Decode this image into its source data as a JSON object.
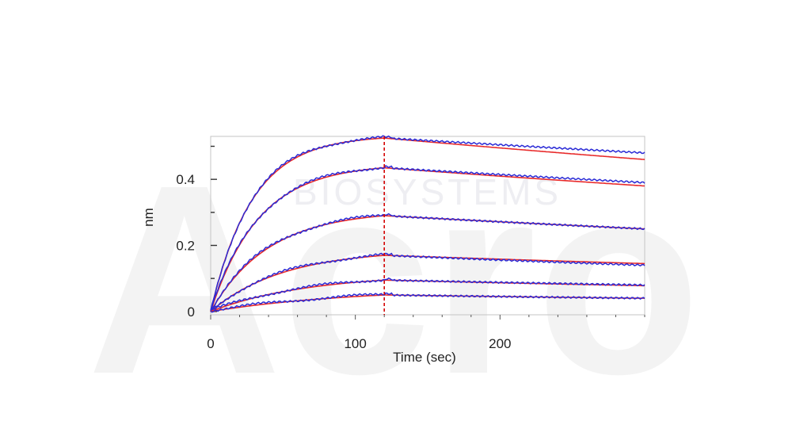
{
  "watermark": {
    "logo": "Acro",
    "text": "BIOSYSTEMS"
  },
  "chart_data": {
    "type": "line",
    "title": "",
    "xlabel": "Time (sec)",
    "ylabel": "nm",
    "xlim": [
      0,
      300
    ],
    "ylim": [
      -0.01,
      0.53
    ],
    "xticks": [
      0,
      100,
      200
    ],
    "yticks": [
      0,
      0.2,
      0.4
    ],
    "x_minor_step": 20,
    "y_minor_step": 0.1,
    "dissociation_start": 120,
    "colors": {
      "measured": "#2b2bd6",
      "fit": "#e82a2a",
      "marker": "#d40000"
    },
    "series": [
      {
        "name": "curve-1",
        "association_peak": 0.525,
        "end_measured": 0.48,
        "end_fit": 0.46
      },
      {
        "name": "curve-2",
        "association_peak": 0.435,
        "end_measured": 0.39,
        "end_fit": 0.38
      },
      {
        "name": "curve-3",
        "association_peak": 0.29,
        "end_measured": 0.25,
        "end_fit": 0.25
      },
      {
        "name": "curve-4",
        "association_peak": 0.17,
        "end_measured": 0.14,
        "end_fit": 0.145
      },
      {
        "name": "curve-5",
        "association_peak": 0.095,
        "end_measured": 0.08,
        "end_fit": 0.078
      },
      {
        "name": "curve-6",
        "association_peak": 0.05,
        "end_measured": 0.04,
        "end_fit": 0.04
      }
    ]
  }
}
